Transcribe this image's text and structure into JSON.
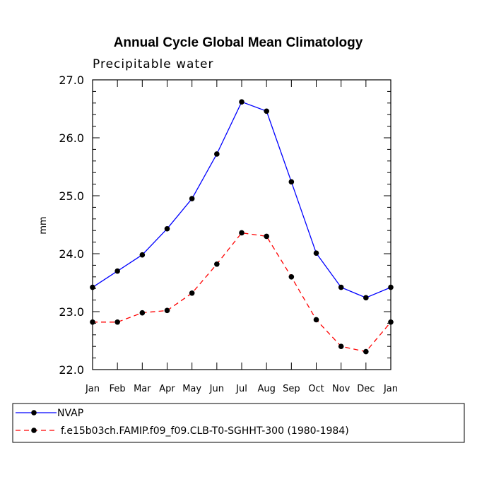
{
  "chart_data": {
    "type": "line",
    "title": "Annual Cycle Global Mean Climatology",
    "subtitle": "Precipitable water",
    "xlabel": "",
    "ylabel": "mm",
    "categories": [
      "Jan",
      "Feb",
      "Mar",
      "Apr",
      "May",
      "Jun",
      "Jul",
      "Aug",
      "Sep",
      "Oct",
      "Nov",
      "Dec",
      "Jan"
    ],
    "ylim": [
      22.0,
      27.0
    ],
    "yticks": [
      22.0,
      23.0,
      24.0,
      25.0,
      26.0,
      27.0
    ],
    "ytick_labels": [
      "22.0",
      "23.0",
      "24.0",
      "25.0",
      "26.0",
      "27.0"
    ],
    "grid": false,
    "legend_position": "bottom",
    "series": [
      {
        "name": "NVAP",
        "color": "#0000ff",
        "style": "solid",
        "values": [
          23.42,
          23.7,
          23.98,
          24.43,
          24.95,
          25.72,
          26.62,
          26.46,
          25.24,
          24.01,
          23.42,
          23.24,
          23.42
        ]
      },
      {
        "name": "f.e15b03ch.FAMIP.f09_f09.CLB-T0-SGHHT-300 (1980-1984)",
        "color": "#ff0000",
        "style": "dashed",
        "values": [
          22.82,
          22.82,
          22.98,
          23.02,
          23.32,
          23.82,
          24.36,
          24.3,
          23.6,
          22.86,
          22.4,
          22.31,
          22.82
        ]
      }
    ]
  }
}
